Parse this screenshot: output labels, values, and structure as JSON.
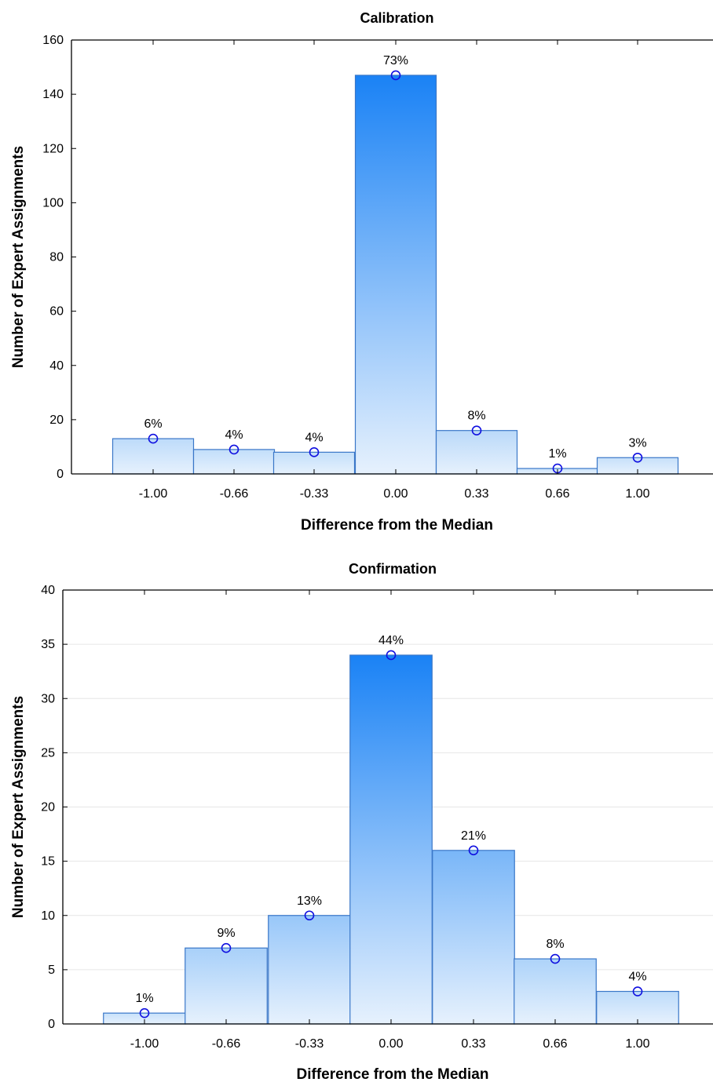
{
  "chart_data": [
    {
      "type": "bar",
      "title": "Calibration",
      "xlabel": "Difference from the Median",
      "ylabel": "Number of Expert Assignments",
      "categories": [
        "-1.00",
        "-0.66",
        "-0.33",
        "0.00",
        "0.33",
        "0.66",
        "1.00"
      ],
      "values": [
        13,
        9,
        8,
        147,
        16,
        2,
        6
      ],
      "data_labels": [
        "6%",
        "4%",
        "4%",
        "73%",
        "8%",
        "1%",
        "3%"
      ],
      "ylim": [
        0,
        160
      ],
      "yticks": [
        0,
        20,
        40,
        60,
        80,
        100,
        120,
        140,
        160
      ],
      "grid": false,
      "marker": "circle at bar top"
    },
    {
      "type": "bar",
      "title": "Confirmation",
      "xlabel": "Difference from the Median",
      "ylabel": "Number of Expert Assignments",
      "categories": [
        "-1.00",
        "-0.66",
        "-0.33",
        "0.00",
        "0.33",
        "0.66",
        "1.00"
      ],
      "values": [
        1,
        7,
        10,
        34,
        16,
        6,
        3
      ],
      "data_labels": [
        "1%",
        "9%",
        "13%",
        "44%",
        "21%",
        "8%",
        "4%"
      ],
      "ylim": [
        0,
        40
      ],
      "yticks": [
        0,
        5,
        10,
        15,
        20,
        25,
        30,
        35,
        40
      ],
      "grid": true,
      "marker": "circle at bar top"
    }
  ],
  "colors": {
    "bar_fill_top": "#1a82f5",
    "bar_fill_bottom": "#e6f1fd",
    "bar_stroke": "#3a77c8",
    "marker_stroke": "#1010e0",
    "axis": "#000000",
    "grid": "#e6e6e6"
  }
}
